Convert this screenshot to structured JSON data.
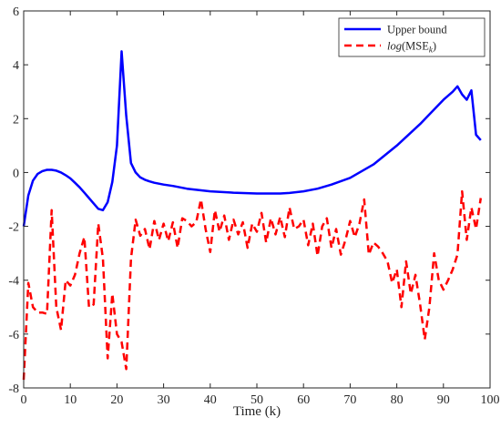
{
  "chart_data": {
    "type": "line",
    "title": "",
    "xlabel": "Time (k)",
    "ylabel": "",
    "xlim": [
      0,
      100
    ],
    "ylim": [
      -8,
      6
    ],
    "xticks": [
      0,
      10,
      20,
      30,
      40,
      50,
      60,
      70,
      80,
      90,
      100
    ],
    "yticks": [
      -8,
      -6,
      -4,
      -2,
      0,
      2,
      4,
      6
    ],
    "grid": false,
    "box": true,
    "legend_position": "top-right",
    "series": [
      {
        "name": "Upper bound",
        "style": "solid",
        "color": "#0000ff",
        "x": [
          0,
          1,
          2,
          3,
          4,
          5,
          6,
          7,
          8,
          9,
          10,
          11,
          12,
          13,
          14,
          15,
          16,
          17,
          18,
          19,
          20,
          21,
          22,
          23,
          24,
          25,
          26,
          27,
          28,
          30,
          32,
          35,
          40,
          45,
          50,
          55,
          57,
          60,
          63,
          66,
          70,
          75,
          80,
          85,
          90,
          92,
          93,
          94,
          95,
          96,
          97,
          98
        ],
        "y": [
          -2.0,
          -0.85,
          -0.3,
          -0.05,
          0.05,
          0.1,
          0.1,
          0.07,
          0.0,
          -0.1,
          -0.22,
          -0.38,
          -0.55,
          -0.75,
          -0.95,
          -1.15,
          -1.35,
          -1.4,
          -1.1,
          -0.35,
          1.0,
          4.5,
          2.1,
          0.35,
          0.0,
          -0.18,
          -0.27,
          -0.33,
          -0.38,
          -0.45,
          -0.5,
          -0.6,
          -0.7,
          -0.75,
          -0.78,
          -0.78,
          -0.76,
          -0.7,
          -0.6,
          -0.45,
          -0.2,
          0.3,
          1.0,
          1.8,
          2.7,
          3.0,
          3.2,
          2.9,
          2.7,
          3.05,
          1.4,
          1.2
        ]
      },
      {
        "name": "log(MSE_k)",
        "style": "dashed",
        "color": "#ff0000",
        "x": [
          0,
          1,
          2,
          3,
          4,
          5,
          6,
          7,
          8,
          9,
          10,
          11,
          12,
          13,
          14,
          15,
          16,
          17,
          18,
          19,
          20,
          21,
          22,
          23,
          24,
          25,
          26,
          27,
          28,
          29,
          30,
          31,
          32,
          33,
          34,
          35,
          36,
          37,
          38,
          39,
          40,
          41,
          42,
          43,
          44,
          45,
          46,
          47,
          48,
          49,
          50,
          51,
          52,
          53,
          54,
          55,
          56,
          57,
          58,
          59,
          60,
          61,
          62,
          63,
          64,
          65,
          66,
          67,
          68,
          69,
          70,
          71,
          72,
          73,
          74,
          75,
          76,
          77,
          78,
          79,
          80,
          81,
          82,
          83,
          84,
          85,
          86,
          87,
          88,
          89,
          90,
          91,
          92,
          93,
          94,
          95,
          96,
          97,
          98
        ],
        "y": [
          -7.7,
          -4.1,
          -5.0,
          -5.2,
          -5.2,
          -5.25,
          -1.4,
          -5.0,
          -5.85,
          -4.0,
          -4.2,
          -3.8,
          -3.0,
          -2.4,
          -5.0,
          -4.9,
          -1.9,
          -3.2,
          -6.9,
          -4.5,
          -6.0,
          -6.3,
          -7.3,
          -3.2,
          -1.75,
          -2.35,
          -2.1,
          -2.85,
          -1.8,
          -2.5,
          -1.9,
          -2.55,
          -1.85,
          -2.8,
          -1.7,
          -1.8,
          -2.0,
          -1.85,
          -1.0,
          -2.1,
          -2.95,
          -1.4,
          -2.2,
          -1.6,
          -2.5,
          -1.75,
          -2.3,
          -1.85,
          -2.8,
          -1.9,
          -2.2,
          -1.5,
          -2.6,
          -1.7,
          -2.3,
          -1.65,
          -2.4,
          -1.3,
          -2.1,
          -2.0,
          -1.75,
          -2.7,
          -1.9,
          -3.1,
          -2.0,
          -1.7,
          -2.8,
          -2.1,
          -3.05,
          -2.5,
          -1.8,
          -2.4,
          -1.9,
          -1.0,
          -3.05,
          -2.6,
          -2.75,
          -3.0,
          -3.3,
          -4.1,
          -3.6,
          -5.0,
          -3.3,
          -4.5,
          -3.8,
          -4.9,
          -6.2,
          -5.0,
          -3.0,
          -4.0,
          -4.35,
          -4.0,
          -3.6,
          -3.05,
          -0.7,
          -2.5,
          -1.3,
          -2.1,
          -0.95
        ]
      }
    ]
  },
  "legend": {
    "items": [
      {
        "label": "Upper bound"
      },
      {
        "label_main": "log",
        "label_open": "(MSE",
        "label_sub": "k",
        "label_close": ")"
      }
    ]
  }
}
